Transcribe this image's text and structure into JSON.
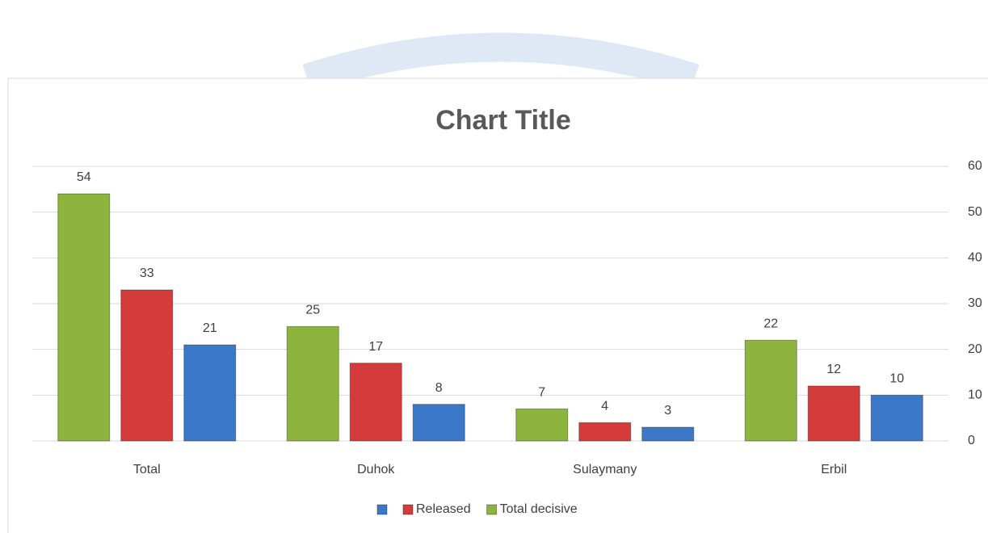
{
  "chart_data": {
    "type": "bar",
    "title": "Chart Title",
    "categories": [
      "Total",
      "Duhok",
      "Sulaymany",
      "Erbil"
    ],
    "series": [
      {
        "name": "Total decisive",
        "color": "#8db43c",
        "values": [
          54,
          25,
          7,
          22
        ]
      },
      {
        "name": "Released",
        "color": "#d43c3c",
        "values": [
          33,
          17,
          4,
          12
        ]
      },
      {
        "color": "#3c78c8",
        "values": [
          21,
          8,
          3,
          10
        ]
      }
    ],
    "ylim": [
      0,
      60
    ],
    "yticks": [
      0,
      10,
      20,
      30,
      40,
      50,
      60
    ],
    "grid": true,
    "y_axis_side": "right",
    "legend": "bottom"
  }
}
